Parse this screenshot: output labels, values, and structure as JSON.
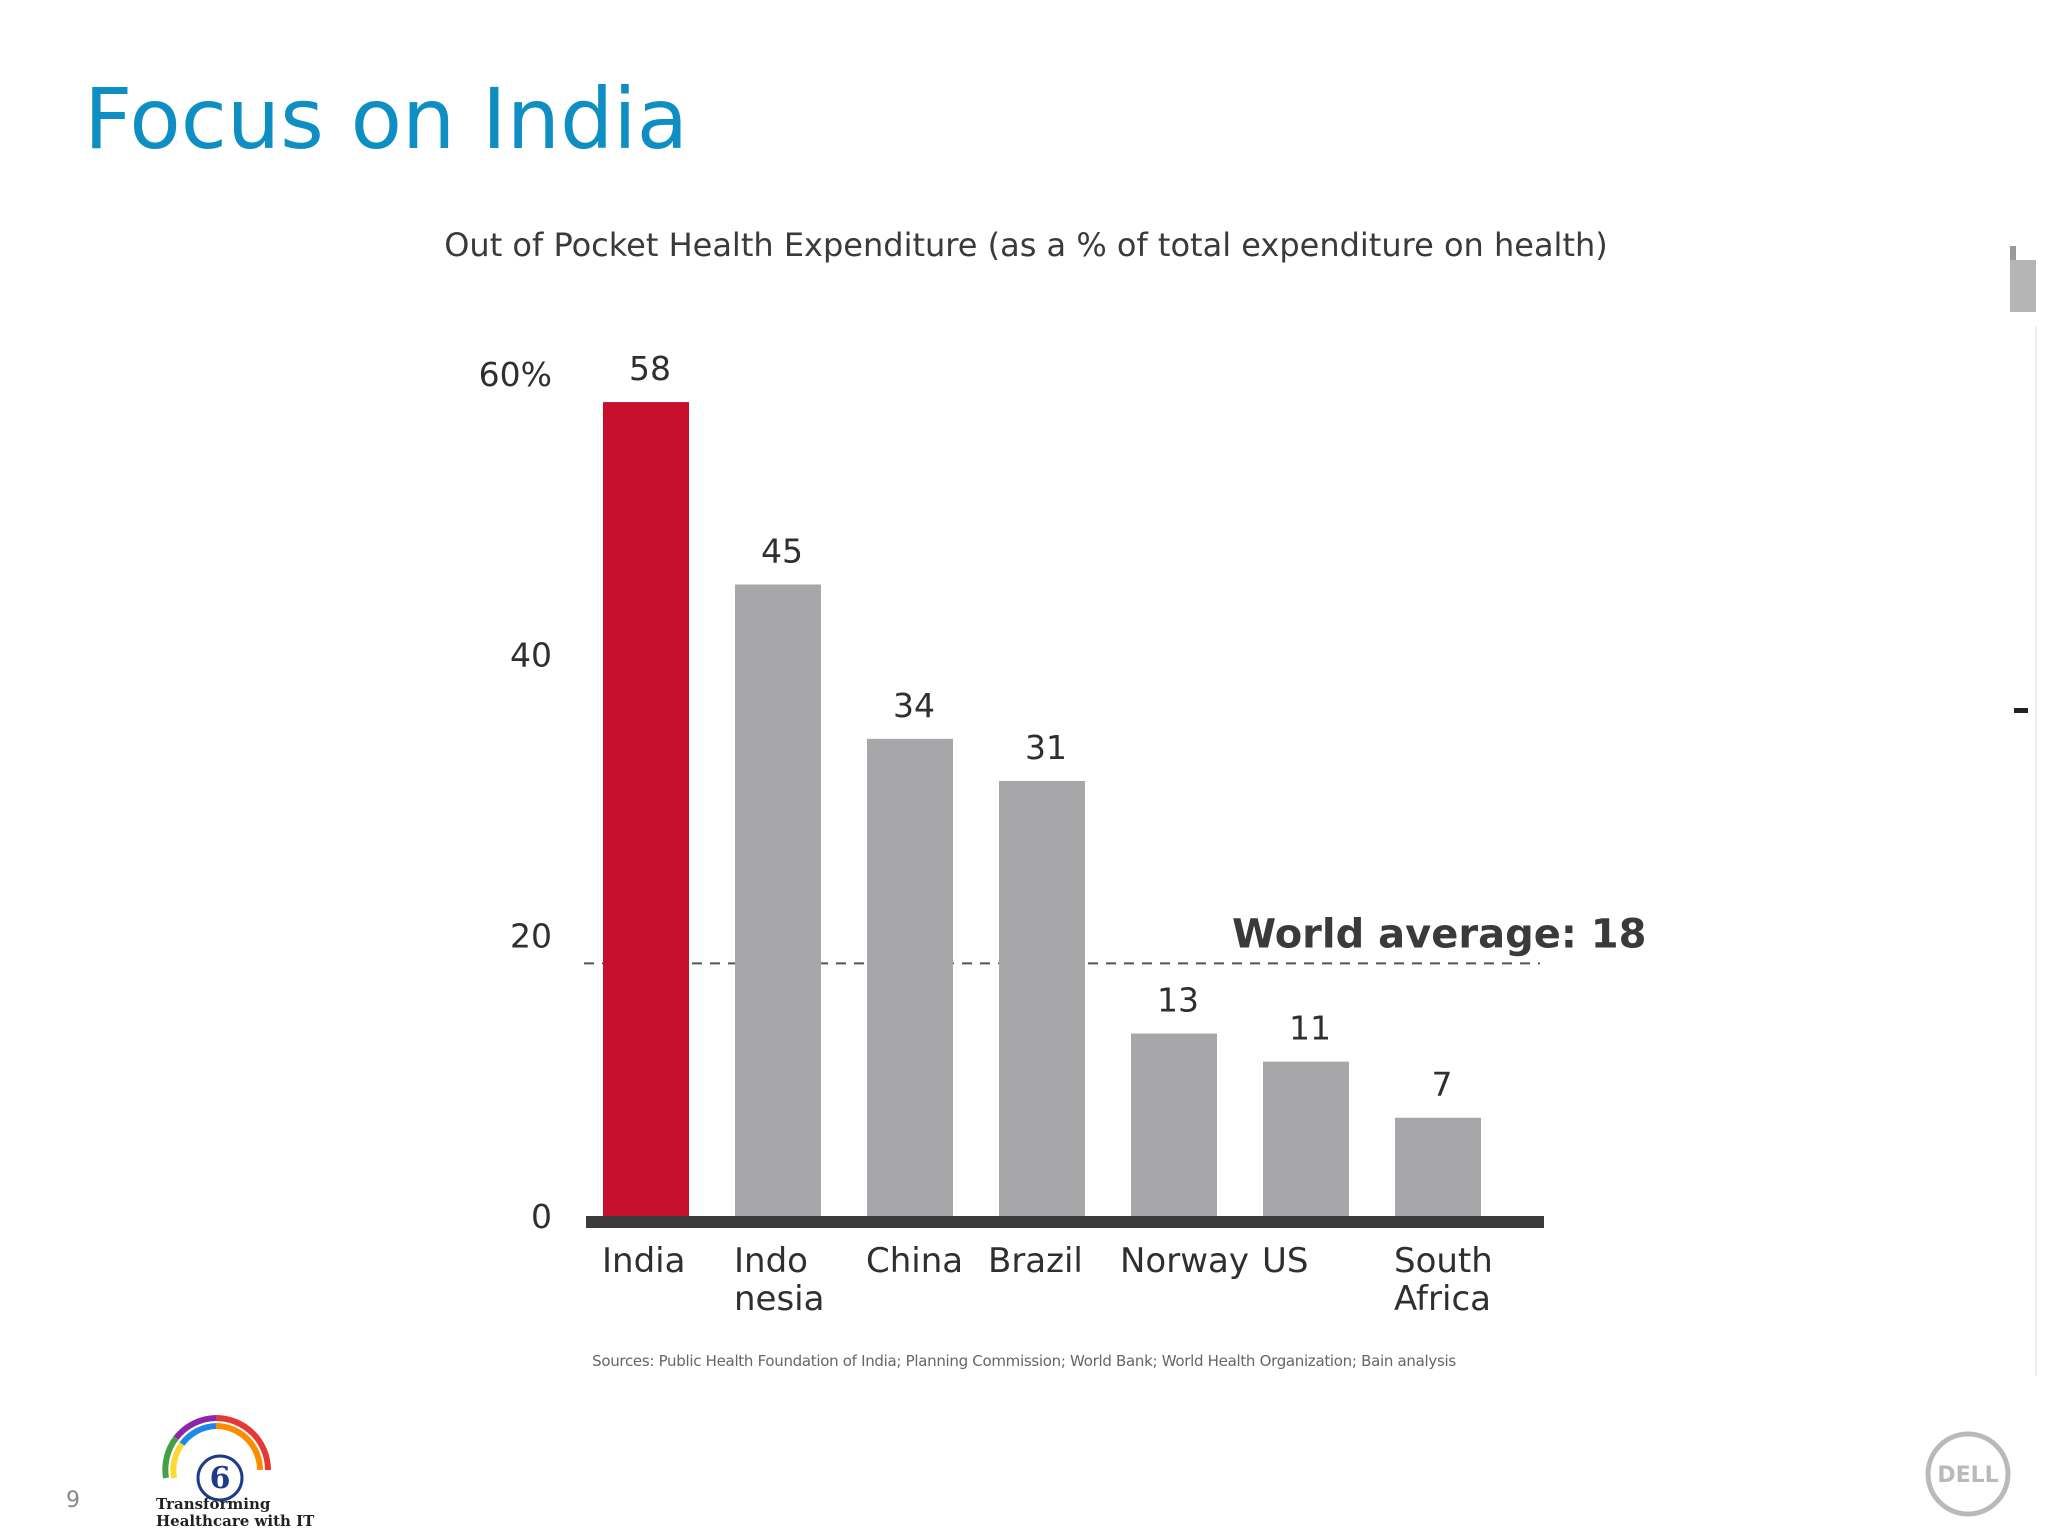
{
  "slide": {
    "title": "Focus on India",
    "page_number": "9",
    "source": "Sources: Public Health Foundation of India; Planning Commission; World Bank; World Health Organization; Bain analysis"
  },
  "branding": {
    "event_line1": "Transforming",
    "event_line2": "Healthcare with IT",
    "event_number": "6",
    "vendor_logo": "DELL"
  },
  "colors": {
    "title": "#0f8ec4",
    "highlight_bar": "#c8102e",
    "bar": "#a7a6a9",
    "axis": "#3b3b3d"
  },
  "chart_data": {
    "type": "bar",
    "title": "Out of Pocket Health Expenditure (as a % of total expenditure on health)",
    "categories": [
      [
        "India"
      ],
      [
        "Indo",
        "nesia"
      ],
      [
        "China"
      ],
      [
        "Brazil"
      ],
      [
        "Norway"
      ],
      [
        "US"
      ],
      [
        "South",
        "Africa"
      ]
    ],
    "values": [
      58,
      45,
      34,
      31,
      13,
      11,
      7
    ],
    "highlight_index": 0,
    "ylim": [
      0,
      60
    ],
    "yticks": [
      0,
      20,
      40,
      60
    ],
    "ytick_labels": [
      "0",
      "20",
      "40",
      "60%"
    ],
    "reference_line": {
      "value": 18,
      "label": "World average: 18",
      "style": "dashed"
    },
    "grid": false
  }
}
